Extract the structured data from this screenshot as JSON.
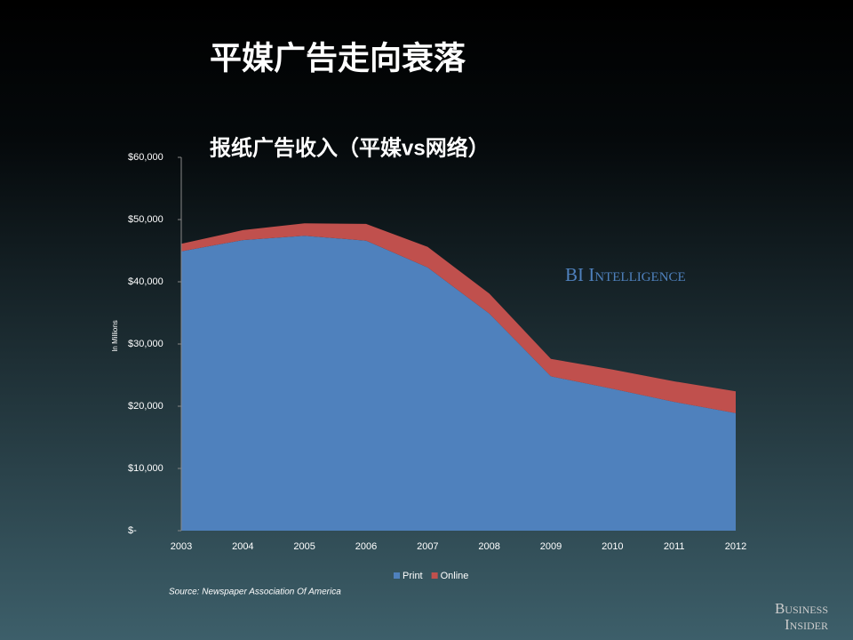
{
  "chart_data": {
    "type": "stacked_area",
    "title": "平媒广告走向衰落",
    "subtitle": "报纸广告收入（平媒vs网络）",
    "y_label": "In Millions",
    "categories": [
      "2003",
      "2004",
      "2005",
      "2006",
      "2007",
      "2008",
      "2009",
      "2010",
      "2011",
      "2012"
    ],
    "series": [
      {
        "name": "Print",
        "color": "#4f81bd",
        "values": [
          44900,
          46700,
          47400,
          46600,
          42300,
          34900,
          24800,
          22800,
          20700,
          18900
        ]
      },
      {
        "name": "Online",
        "color": "#c0504d",
        "values": [
          1200,
          1600,
          2000,
          2700,
          3300,
          3200,
          2800,
          3100,
          3300,
          3500
        ]
      }
    ],
    "ylim": [
      0,
      60000
    ],
    "yticks": [
      {
        "value": 0,
        "label": "$-"
      },
      {
        "value": 10000,
        "label": "$10,000"
      },
      {
        "value": 20000,
        "label": "$20,000"
      },
      {
        "value": 30000,
        "label": "$30,000"
      },
      {
        "value": 40000,
        "label": "$40,000"
      },
      {
        "value": 50000,
        "label": "$50,000"
      },
      {
        "value": 60000,
        "label": "$60,000"
      }
    ],
    "legend_position": "bottom",
    "source": "Source: Newspaper Association Of America",
    "watermark": "BI Intelligence",
    "logo": [
      "Business",
      "Insider"
    ]
  }
}
